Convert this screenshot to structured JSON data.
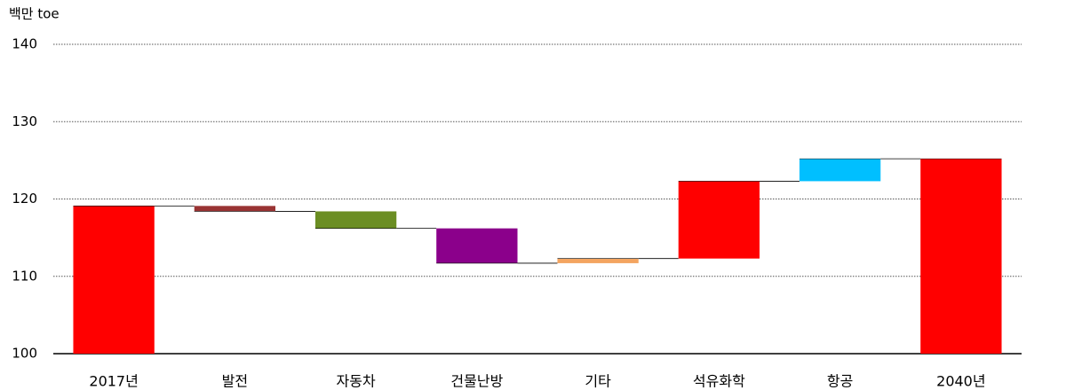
{
  "chart_data": {
    "type": "waterfall",
    "y_label": "백만 toe",
    "categories": [
      "2017년",
      "발전",
      "자동차",
      "건물난방",
      "기타",
      "석유화학",
      "항공",
      "2040년"
    ],
    "values": [
      119.1,
      -0.7,
      -2.2,
      -4.5,
      0.6,
      10.0,
      2.9,
      125.2
    ],
    "totals": [
      true,
      false,
      false,
      false,
      false,
      false,
      false,
      true
    ],
    "colors": [
      "#ff0000",
      "#993333",
      "#6b8e23",
      "#8b008b",
      "#f4a460",
      "#ff0000",
      "#00bfff",
      "#ff0000"
    ],
    "ylim": [
      100,
      140
    ],
    "yticks": [
      100,
      110,
      120,
      130,
      140
    ],
    "grid": true
  }
}
